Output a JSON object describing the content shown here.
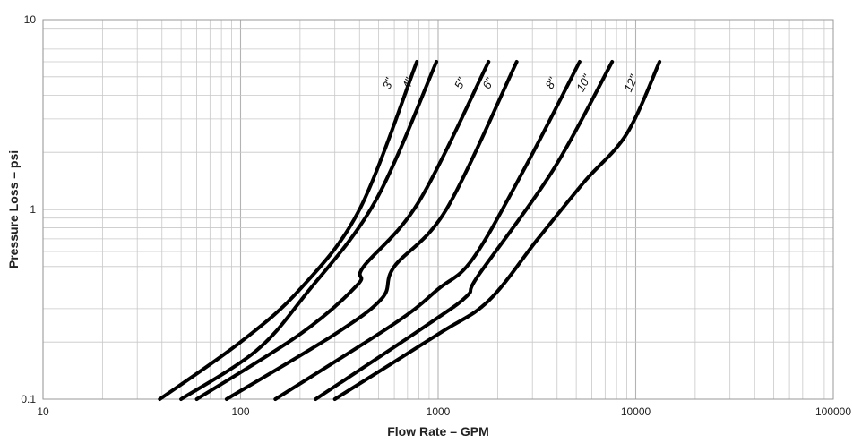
{
  "chart_data": {
    "type": "line",
    "title": "",
    "xlabel": "Flow Rate – GPM",
    "ylabel": "Pressure Loss – psi",
    "x_scale": "log",
    "y_scale": "log",
    "xlim": [
      10,
      100000
    ],
    "ylim": [
      0.1,
      10
    ],
    "grid": true,
    "legend": "none",
    "x_ticks": [
      "10",
      "100",
      "1000",
      "10000",
      "100000"
    ],
    "y_ticks": [
      "0.1",
      "1",
      "10"
    ],
    "series": [
      {
        "name": "3\"",
        "points": [
          [
            39,
            0.1
          ],
          [
            100,
            0.2
          ],
          [
            200,
            0.38
          ],
          [
            400,
            1.0
          ],
          [
            780,
            6.0
          ]
        ]
      },
      {
        "name": "4\"",
        "points": [
          [
            50,
            0.1
          ],
          [
            120,
            0.18
          ],
          [
            215,
            0.36
          ],
          [
            480,
            1.1
          ],
          [
            980,
            6.0
          ]
        ]
      },
      {
        "name": "5\"",
        "points": [
          [
            60,
            0.1
          ],
          [
            200,
            0.22
          ],
          [
            390,
            0.4
          ],
          [
            420,
            0.5
          ],
          [
            800,
            1.1
          ],
          [
            1800,
            6.0
          ]
        ]
      },
      {
        "name": "6\"",
        "points": [
          [
            85,
            0.1
          ],
          [
            300,
            0.22
          ],
          [
            520,
            0.34
          ],
          [
            600,
            0.5
          ],
          [
            1100,
            1.0
          ],
          [
            2500,
            6.0
          ]
        ]
      },
      {
        "name": "8\"",
        "points": [
          [
            150,
            0.1
          ],
          [
            600,
            0.25
          ],
          [
            1000,
            0.38
          ],
          [
            1500,
            0.55
          ],
          [
            2700,
            1.6
          ],
          [
            5200,
            6.0
          ]
        ]
      },
      {
        "name": "10\"",
        "points": [
          [
            240,
            0.1
          ],
          [
            900,
            0.25
          ],
          [
            1400,
            0.35
          ],
          [
            1600,
            0.45
          ],
          [
            3800,
            1.6
          ],
          [
            7600,
            6.0
          ]
        ]
      },
      {
        "name": "12\"",
        "points": [
          [
            300,
            0.1
          ],
          [
            1000,
            0.22
          ],
          [
            1800,
            0.33
          ],
          [
            3200,
            0.7
          ],
          [
            5500,
            1.4
          ],
          [
            9000,
            2.5
          ],
          [
            13200,
            6.0
          ]
        ]
      }
    ]
  }
}
